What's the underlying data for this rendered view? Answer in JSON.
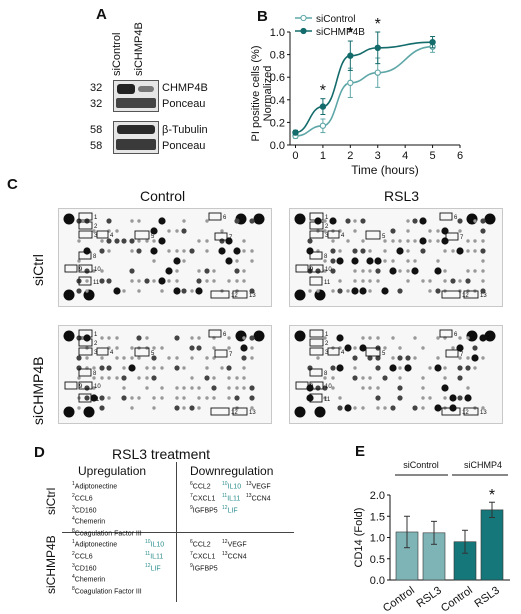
{
  "panels": {
    "A": "A",
    "B": "B",
    "C": "C",
    "D": "D",
    "E": "E"
  },
  "panelA": {
    "lanes": [
      "siControl",
      "siCHMP4B"
    ],
    "rows": [
      {
        "mw": "32",
        "label": "CHMP4B"
      },
      {
        "mw": "32",
        "label": "Ponceau"
      },
      {
        "mw": "58",
        "label": "β-Tubulin"
      },
      {
        "mw": "58",
        "label": "Ponceau"
      }
    ]
  },
  "panelB": {
    "chart_data": {
      "type": "line",
      "xlabel": "Time (hours)",
      "ylabel": "PI positive cells (%) Normalized",
      "xlim": [
        -0.2,
        6
      ],
      "ylim": [
        0,
        1.0
      ],
      "xticks": [
        "0",
        "1",
        "2",
        "3",
        "4",
        "5",
        "6"
      ],
      "yticks": [
        "0.0",
        "0.2",
        "0.4",
        "0.6",
        "0.8",
        "1.0"
      ],
      "legend_position": "top-left",
      "series": [
        {
          "name": "siControl",
          "x": [
            0,
            1,
            2,
            3,
            5
          ],
          "y": [
            0.08,
            0.17,
            0.55,
            0.64,
            0.87
          ],
          "err": [
            0.02,
            0.06,
            0.13,
            0.13,
            0.05
          ],
          "color": "#5fa7a7",
          "marker": "open-circle"
        },
        {
          "name": "siCHMP4B",
          "x": [
            0,
            1,
            2,
            3,
            5
          ],
          "y": [
            0.11,
            0.34,
            0.79,
            0.86,
            0.91
          ],
          "err": [
            0.02,
            0.07,
            0.13,
            0.14,
            0.05
          ],
          "color": "#146b6b",
          "marker": "filled-circle"
        }
      ],
      "significance_x": [
        1,
        2,
        3
      ],
      "significance_mark": "*"
    }
  },
  "panelC": {
    "col_labels": [
      "Control",
      "RSL3"
    ],
    "row_labels": [
      "siCtrl",
      "siCHMP4B"
    ],
    "numbers": [
      "1",
      "2",
      "3",
      "4",
      "5",
      "6",
      "7",
      "8",
      "9",
      "10",
      "11",
      "12",
      "13"
    ]
  },
  "panelD": {
    "title": "RSL3 treatment",
    "col_up": "Upregulation",
    "col_down": "Downregulation",
    "row1": "siCtrl",
    "row2": "siCHMP4B",
    "r1_up": [
      [
        "1",
        "Adiptonectine"
      ],
      [
        "2",
        "CCL6"
      ],
      [
        "3",
        "CD160"
      ],
      [
        "4",
        "Chemerin"
      ],
      [
        "8",
        "Coagulation Factor III"
      ]
    ],
    "r1_down_a": [
      [
        "6",
        "CCL2"
      ],
      [
        "7",
        "CXCL1"
      ],
      [
        "9",
        "IGFBP5"
      ]
    ],
    "r1_down_b": [
      [
        "10",
        "IL10"
      ],
      [
        "11",
        "IL11"
      ],
      [
        "12",
        "LIF"
      ]
    ],
    "r1_down_c": [
      [
        "13",
        "VEGF"
      ],
      [
        "13",
        "CCN4"
      ]
    ],
    "r2_up_a": [
      [
        "1",
        "Adiptonectine"
      ],
      [
        "2",
        "CCL6"
      ],
      [
        "3",
        "CD160"
      ],
      [
        "4",
        "Chemerin"
      ],
      [
        "8",
        "Coagulation Factor III"
      ]
    ],
    "r2_up_b": [
      [
        "10",
        "IL10"
      ],
      [
        "11",
        "IL11"
      ],
      [
        "12",
        "LIF"
      ]
    ],
    "r2_down_a": [
      [
        "6",
        "CCL2"
      ],
      [
        "7",
        "CXCL1"
      ],
      [
        "9",
        "IGFBP5"
      ]
    ],
    "r2_down_b": [
      [
        "12",
        "VEGF"
      ],
      [
        "13",
        "CCN4"
      ]
    ]
  },
  "panelE": {
    "chart_data": {
      "type": "bar",
      "categories": [
        "Control",
        "RSL3",
        "Control",
        "RSL3"
      ],
      "groups": [
        "siControl",
        "siCHMP4"
      ],
      "values": [
        1.13,
        1.11,
        0.9,
        1.65
      ],
      "errors": [
        0.37,
        0.27,
        0.27,
        0.18
      ],
      "colors": [
        "#7fb4b6",
        "#7fb4b6",
        "#16777a",
        "#16777a"
      ],
      "ylabel": "CD14 (Fold)",
      "ylim": [
        0,
        2.0
      ],
      "yticks": [
        "0.0",
        "0.5",
        "1.0",
        "1.5",
        "2.0"
      ],
      "significance_index": 3,
      "significance_mark": "*"
    }
  }
}
